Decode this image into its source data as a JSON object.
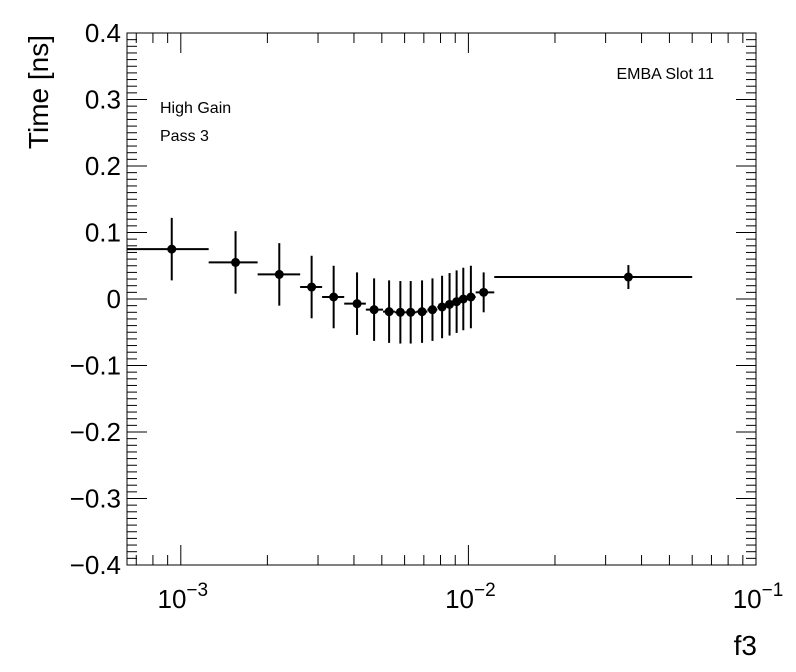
{
  "chart_data": {
    "type": "scatter",
    "title": "",
    "xlabel": "f3",
    "ylabel": "Time [ns]",
    "xscale": "log",
    "xlim": [
      0.00065,
      0.1
    ],
    "ylim": [
      -0.4,
      0.4
    ],
    "y_ticks": [
      -0.4,
      -0.3,
      -0.2,
      -0.1,
      0,
      0.1,
      0.2,
      0.3,
      0.4
    ],
    "y_tick_labels": [
      "−0.4",
      "−0.3",
      "−0.2",
      "−0.1",
      "0",
      "0.1",
      "0.2",
      "0.3",
      "0.4"
    ],
    "x_tick_labels": [
      {
        "base": "10",
        "exp": "−3",
        "value": 0.001
      },
      {
        "base": "10",
        "exp": "−2",
        "value": 0.01
      },
      {
        "base": "10",
        "exp": "−1",
        "value": 0.1
      }
    ],
    "annotations": {
      "top_right": "EMBA Slot 11",
      "gain": "High Gain",
      "pass": "Pass 3"
    },
    "series": [
      {
        "name": "Pass 3",
        "points": [
          {
            "x": 0.00093,
            "y": 0.075,
            "xlo": 0.00065,
            "xhi": 0.00125,
            "err": 0.047
          },
          {
            "x": 0.00155,
            "y": 0.055,
            "xlo": 0.00125,
            "xhi": 0.00185,
            "err": 0.047
          },
          {
            "x": 0.0022,
            "y": 0.037,
            "xlo": 0.00185,
            "xhi": 0.0026,
            "err": 0.047
          },
          {
            "x": 0.00285,
            "y": 0.018,
            "xlo": 0.0026,
            "xhi": 0.0031,
            "err": 0.047
          },
          {
            "x": 0.0034,
            "y": 0.003,
            "xlo": 0.0031,
            "xhi": 0.0037,
            "err": 0.047
          },
          {
            "x": 0.0041,
            "y": -0.007,
            "xlo": 0.0037,
            "xhi": 0.0044,
            "err": 0.047
          },
          {
            "x": 0.0047,
            "y": -0.016,
            "xlo": 0.0044,
            "xhi": 0.00505,
            "err": 0.047
          },
          {
            "x": 0.0053,
            "y": -0.019,
            "xlo": 0.00505,
            "xhi": 0.00555,
            "err": 0.047
          },
          {
            "x": 0.0058,
            "y": -0.02,
            "xlo": 0.00555,
            "xhi": 0.00605,
            "err": 0.047
          },
          {
            "x": 0.0063,
            "y": -0.02,
            "xlo": 0.00605,
            "xhi": 0.0066,
            "err": 0.047
          },
          {
            "x": 0.0069,
            "y": -0.019,
            "xlo": 0.0066,
            "xhi": 0.0072,
            "err": 0.047
          },
          {
            "x": 0.0075,
            "y": -0.016,
            "xlo": 0.0072,
            "xhi": 0.0078,
            "err": 0.047
          },
          {
            "x": 0.0081,
            "y": -0.012,
            "xlo": 0.0078,
            "xhi": 0.0083,
            "err": 0.047
          },
          {
            "x": 0.0086,
            "y": -0.008,
            "xlo": 0.0083,
            "xhi": 0.0088,
            "err": 0.047
          },
          {
            "x": 0.0091,
            "y": -0.004,
            "xlo": 0.0088,
            "xhi": 0.0093,
            "err": 0.047
          },
          {
            "x": 0.0096,
            "y": 0.0,
            "xlo": 0.0093,
            "xhi": 0.0099,
            "err": 0.047
          },
          {
            "x": 0.0102,
            "y": 0.003,
            "xlo": 0.0099,
            "xhi": 0.0106,
            "err": 0.047
          },
          {
            "x": 0.0113,
            "y": 0.01,
            "xlo": 0.0106,
            "xhi": 0.0123,
            "err": 0.03
          },
          {
            "x": 0.036,
            "y": 0.033,
            "xlo": 0.0123,
            "xhi": 0.06,
            "err": 0.018
          }
        ]
      }
    ]
  }
}
